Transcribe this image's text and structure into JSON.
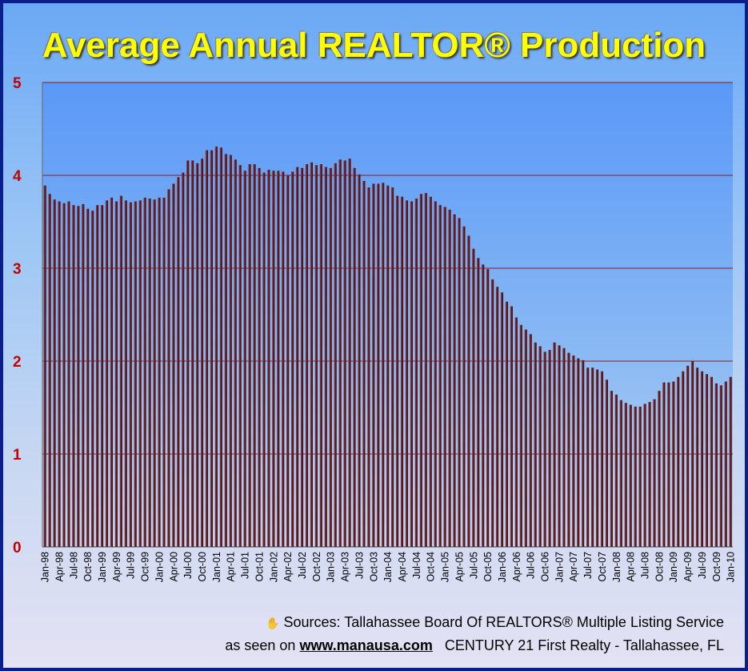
{
  "chart_data": {
    "type": "bar",
    "title": "Average Annual REALTOR® Production",
    "xlabel": "",
    "ylabel": "",
    "ylim": [
      0,
      5
    ],
    "yticks": [
      "0",
      "1",
      "2",
      "3",
      "4",
      "5"
    ],
    "grid": true,
    "start_month": "Jan-98",
    "end_month": "Jan-10",
    "xtick_labels": [
      "Jan-98",
      "Apr-98",
      "Jul-98",
      "Oct-98",
      "Jan-99",
      "Apr-99",
      "Jul-99",
      "Oct-99",
      "Jan-00",
      "Apr-00",
      "Jul-00",
      "Oct-00",
      "Jan-01",
      "Apr-01",
      "Jul-01",
      "Oct-01",
      "Jan-02",
      "Apr-02",
      "Jul-02",
      "Oct-02",
      "Jan-03",
      "Apr-03",
      "Jul-03",
      "Oct-03",
      "Jan-04",
      "Apr-04",
      "Jul-04",
      "Oct-04",
      "Jan-05",
      "Apr-05",
      "Jul-05",
      "Oct-05",
      "Jan-06",
      "Apr-06",
      "Jul-06",
      "Oct-06",
      "Jan-07",
      "Apr-07",
      "Jul-07",
      "Oct-07",
      "Jan-08",
      "Apr-08",
      "Jul-08",
      "Oct-08",
      "Jan-09",
      "Apr-09",
      "Jul-09",
      "Oct-09",
      "Jan-10"
    ],
    "values": [
      3.89,
      3.8,
      3.74,
      3.72,
      3.7,
      3.72,
      3.68,
      3.67,
      3.69,
      3.64,
      3.62,
      3.68,
      3.68,
      3.73,
      3.76,
      3.72,
      3.78,
      3.73,
      3.71,
      3.72,
      3.73,
      3.76,
      3.75,
      3.74,
      3.76,
      3.76,
      3.85,
      3.91,
      3.98,
      4.03,
      4.16,
      4.16,
      4.13,
      4.18,
      4.27,
      4.27,
      4.31,
      4.3,
      4.23,
      4.22,
      4.17,
      4.11,
      4.05,
      4.12,
      4.12,
      4.08,
      4.03,
      4.06,
      4.05,
      4.05,
      4.04,
      4.0,
      4.04,
      4.09,
      4.08,
      4.12,
      4.14,
      4.11,
      4.12,
      4.09,
      4.08,
      4.13,
      4.17,
      4.16,
      4.18,
      4.08,
      4.01,
      3.94,
      3.87,
      3.91,
      3.91,
      3.92,
      3.89,
      3.87,
      3.78,
      3.77,
      3.73,
      3.72,
      3.75,
      3.8,
      3.81,
      3.77,
      3.72,
      3.68,
      3.66,
      3.63,
      3.58,
      3.54,
      3.45,
      3.35,
      3.21,
      3.11,
      3.04,
      2.99,
      2.88,
      2.8,
      2.74,
      2.64,
      2.59,
      2.47,
      2.39,
      2.34,
      2.29,
      2.2,
      2.16,
      2.1,
      2.12,
      2.2,
      2.17,
      2.14,
      2.09,
      2.06,
      2.03,
      2.01,
      1.93,
      1.93,
      1.91,
      1.89,
      1.8,
      1.68,
      1.64,
      1.58,
      1.55,
      1.53,
      1.51,
      1.51,
      1.54,
      1.56,
      1.59,
      1.68,
      1.77,
      1.77,
      1.78,
      1.83,
      1.89,
      1.95,
      2.0,
      1.93,
      1.89,
      1.86,
      1.83,
      1.76,
      1.74,
      1.78,
      1.83
    ],
    "bar_color": "#6b1f22",
    "grid_color": "#8b1a2a",
    "tick_color": "#c00000"
  },
  "footer": {
    "hand_icon": "✋",
    "sources": "Sources: Tallahassee Board Of REALTORS® Multiple Listing Service",
    "seen_prefix": "as seen on",
    "site": "www.manausa.com",
    "company": "CENTURY 21 First Realty - Tallahassee, FL"
  }
}
